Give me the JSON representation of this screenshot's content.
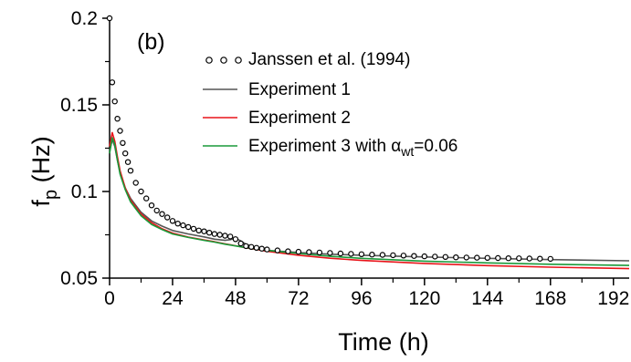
{
  "chart_data": {
    "type": "line",
    "panel_label": "(b)",
    "xlabel": "Time (h)",
    "ylabel_main": "f",
    "ylabel_sub": "p",
    "ylabel_unit": " (Hz)",
    "xlim": [
      0,
      198
    ],
    "ylim": [
      0.05,
      0.2
    ],
    "xticks": [
      0,
      24,
      48,
      72,
      96,
      120,
      144,
      168,
      192
    ],
    "yticks": [
      0.05,
      0.1,
      0.15,
      0.2
    ],
    "ytick_labels": [
      "0.05",
      "0.1",
      "0.15",
      "0.2"
    ],
    "legend_position": "top-right",
    "series": [
      {
        "name": "Janssen et al. (1994)",
        "style": "markers",
        "marker": "open-circle",
        "color": "#000000",
        "x": [
          0,
          1,
          2,
          3,
          4,
          5,
          6,
          7,
          8,
          10,
          12,
          14,
          16,
          18,
          20,
          22,
          24,
          26,
          28,
          30,
          32,
          34,
          36,
          38,
          40,
          42,
          44,
          46,
          48,
          50,
          52,
          54,
          56,
          58,
          60,
          64,
          68,
          72,
          76,
          80,
          84,
          88,
          92,
          96,
          100,
          104,
          108,
          112,
          116,
          120,
          124,
          128,
          132,
          136,
          140,
          144,
          148,
          152,
          156,
          160,
          164,
          168
        ],
        "y": [
          0.2,
          0.163,
          0.152,
          0.142,
          0.135,
          0.128,
          0.122,
          0.117,
          0.112,
          0.105,
          0.1,
          0.096,
          0.092,
          0.089,
          0.087,
          0.085,
          0.083,
          0.0815,
          0.0805,
          0.0795,
          0.0785,
          0.0775,
          0.077,
          0.0762,
          0.0755,
          0.075,
          0.0745,
          0.074,
          0.0725,
          0.07,
          0.0685,
          0.068,
          0.0675,
          0.067,
          0.0665,
          0.066,
          0.0655,
          0.0652,
          0.065,
          0.0648,
          0.0645,
          0.0642,
          0.064,
          0.0638,
          0.0636,
          0.0634,
          0.0632,
          0.063,
          0.0628,
          0.0626,
          0.0624,
          0.0622,
          0.062,
          0.0619,
          0.0618,
          0.0617,
          0.0616,
          0.0615,
          0.0614,
          0.0613,
          0.0612,
          0.0611
        ]
      },
      {
        "name": "Experiment 1",
        "style": "line",
        "color": "#555555",
        "x": [
          0,
          1,
          2,
          3,
          4,
          6,
          8,
          10,
          12,
          16,
          20,
          24,
          30,
          36,
          40,
          44,
          46,
          48,
          50,
          52,
          56,
          60,
          72,
          84,
          96,
          120,
          144,
          168,
          198
        ],
        "y": [
          0.123,
          0.13,
          0.126,
          0.118,
          0.111,
          0.102,
          0.096,
          0.092,
          0.088,
          0.083,
          0.08,
          0.0775,
          0.0755,
          0.0738,
          0.0725,
          0.0718,
          0.0722,
          0.073,
          0.0715,
          0.0695,
          0.0675,
          0.066,
          0.0648,
          0.0638,
          0.0632,
          0.0622,
          0.0614,
          0.0607,
          0.06
        ]
      },
      {
        "name": "Experiment 2",
        "style": "line",
        "color": "#e8141a",
        "x": [
          0,
          1,
          2,
          3,
          4,
          6,
          8,
          10,
          12,
          16,
          20,
          24,
          30,
          36,
          40,
          44,
          48,
          52,
          56,
          60,
          72,
          84,
          96,
          120,
          144,
          168,
          198
        ],
        "y": [
          0.126,
          0.134,
          0.129,
          0.12,
          0.112,
          0.102,
          0.095,
          0.091,
          0.087,
          0.082,
          0.0785,
          0.076,
          0.0737,
          0.072,
          0.071,
          0.0698,
          0.0687,
          0.0675,
          0.0665,
          0.0655,
          0.0632,
          0.0615,
          0.0602,
          0.0585,
          0.0572,
          0.0563,
          0.0555
        ]
      },
      {
        "name": "Experiment 3 with α",
        "name_sub": "wt",
        "name_suffix": "=0.06",
        "style": "line",
        "color": "#1a9a3a",
        "x": [
          0,
          1,
          2,
          3,
          4,
          6,
          8,
          10,
          12,
          16,
          20,
          24,
          30,
          36,
          40,
          44,
          48,
          52,
          56,
          60,
          72,
          84,
          96,
          120,
          144,
          168,
          198
        ],
        "y": [
          0.122,
          0.131,
          0.127,
          0.118,
          0.11,
          0.101,
          0.094,
          0.09,
          0.086,
          0.081,
          0.078,
          0.0755,
          0.0735,
          0.0718,
          0.0708,
          0.0696,
          0.0686,
          0.0676,
          0.0668,
          0.066,
          0.0642,
          0.0626,
          0.0614,
          0.0598,
          0.0588,
          0.058,
          0.0573
        ]
      }
    ]
  }
}
